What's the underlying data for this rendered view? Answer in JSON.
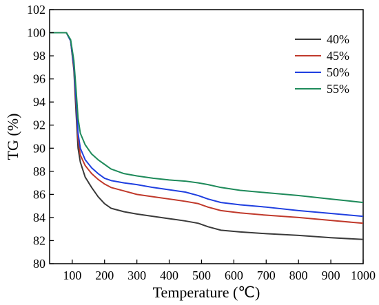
{
  "chart_data": {
    "type": "line",
    "xlabel": "Temperature (℃)",
    "ylabel": "TG (%)",
    "xlim": [
      30,
      1000
    ],
    "ylim": [
      80,
      102
    ],
    "xticks": [
      100,
      200,
      300,
      400,
      500,
      600,
      700,
      800,
      900,
      1000
    ],
    "yticks": [
      80,
      82,
      84,
      86,
      88,
      90,
      92,
      94,
      96,
      98,
      100,
      102
    ],
    "legend_position": "top-right",
    "grid": false,
    "series": [
      {
        "name": "40%",
        "color": "#3a3a3a",
        "points": [
          [
            30,
            100
          ],
          [
            60,
            100
          ],
          [
            82,
            100
          ],
          [
            95,
            99.3
          ],
          [
            105,
            96.8
          ],
          [
            112,
            93.0
          ],
          [
            118,
            90.0
          ],
          [
            125,
            88.8
          ],
          [
            140,
            87.5
          ],
          [
            160,
            86.6
          ],
          [
            180,
            85.8
          ],
          [
            200,
            85.2
          ],
          [
            220,
            84.8
          ],
          [
            260,
            84.5
          ],
          [
            300,
            84.3
          ],
          [
            350,
            84.1
          ],
          [
            400,
            83.9
          ],
          [
            450,
            83.7
          ],
          [
            490,
            83.5
          ],
          [
            520,
            83.2
          ],
          [
            560,
            82.9
          ],
          [
            620,
            82.75
          ],
          [
            700,
            82.6
          ],
          [
            800,
            82.45
          ],
          [
            900,
            82.25
          ],
          [
            1000,
            82.1
          ]
        ]
      },
      {
        "name": "45%",
        "color": "#c0392b",
        "points": [
          [
            30,
            100
          ],
          [
            60,
            100
          ],
          [
            82,
            100
          ],
          [
            95,
            99.3
          ],
          [
            105,
            97.0
          ],
          [
            112,
            93.8
          ],
          [
            118,
            90.8
          ],
          [
            125,
            89.4
          ],
          [
            140,
            88.5
          ],
          [
            160,
            87.8
          ],
          [
            180,
            87.3
          ],
          [
            200,
            86.9
          ],
          [
            220,
            86.6
          ],
          [
            260,
            86.3
          ],
          [
            300,
            86.0
          ],
          [
            350,
            85.8
          ],
          [
            400,
            85.6
          ],
          [
            450,
            85.4
          ],
          [
            490,
            85.2
          ],
          [
            520,
            84.9
          ],
          [
            560,
            84.6
          ],
          [
            620,
            84.4
          ],
          [
            700,
            84.2
          ],
          [
            800,
            84.0
          ],
          [
            900,
            83.75
          ],
          [
            1000,
            83.5
          ]
        ]
      },
      {
        "name": "50%",
        "color": "#1f3fe0",
        "points": [
          [
            30,
            100
          ],
          [
            60,
            100
          ],
          [
            82,
            100
          ],
          [
            95,
            99.3
          ],
          [
            105,
            97.2
          ],
          [
            112,
            94.2
          ],
          [
            118,
            91.3
          ],
          [
            125,
            90.0
          ],
          [
            140,
            89.0
          ],
          [
            160,
            88.3
          ],
          [
            180,
            87.8
          ],
          [
            200,
            87.4
          ],
          [
            220,
            87.2
          ],
          [
            260,
            87.0
          ],
          [
            300,
            86.85
          ],
          [
            350,
            86.6
          ],
          [
            400,
            86.4
          ],
          [
            450,
            86.2
          ],
          [
            490,
            85.9
          ],
          [
            520,
            85.6
          ],
          [
            560,
            85.3
          ],
          [
            620,
            85.1
          ],
          [
            700,
            84.9
          ],
          [
            800,
            84.6
          ],
          [
            900,
            84.35
          ],
          [
            1000,
            84.1
          ]
        ]
      },
      {
        "name": "55%",
        "color": "#1e8a5a",
        "points": [
          [
            30,
            100
          ],
          [
            60,
            100
          ],
          [
            82,
            100
          ],
          [
            95,
            99.4
          ],
          [
            105,
            97.6
          ],
          [
            112,
            95.0
          ],
          [
            118,
            92.6
          ],
          [
            125,
            91.3
          ],
          [
            140,
            90.3
          ],
          [
            160,
            89.5
          ],
          [
            180,
            89.0
          ],
          [
            200,
            88.6
          ],
          [
            220,
            88.2
          ],
          [
            260,
            87.8
          ],
          [
            300,
            87.6
          ],
          [
            350,
            87.4
          ],
          [
            400,
            87.25
          ],
          [
            450,
            87.15
          ],
          [
            490,
            87.0
          ],
          [
            520,
            86.85
          ],
          [
            560,
            86.6
          ],
          [
            620,
            86.35
          ],
          [
            700,
            86.15
          ],
          [
            800,
            85.9
          ],
          [
            900,
            85.6
          ],
          [
            1000,
            85.3
          ]
        ]
      }
    ]
  }
}
